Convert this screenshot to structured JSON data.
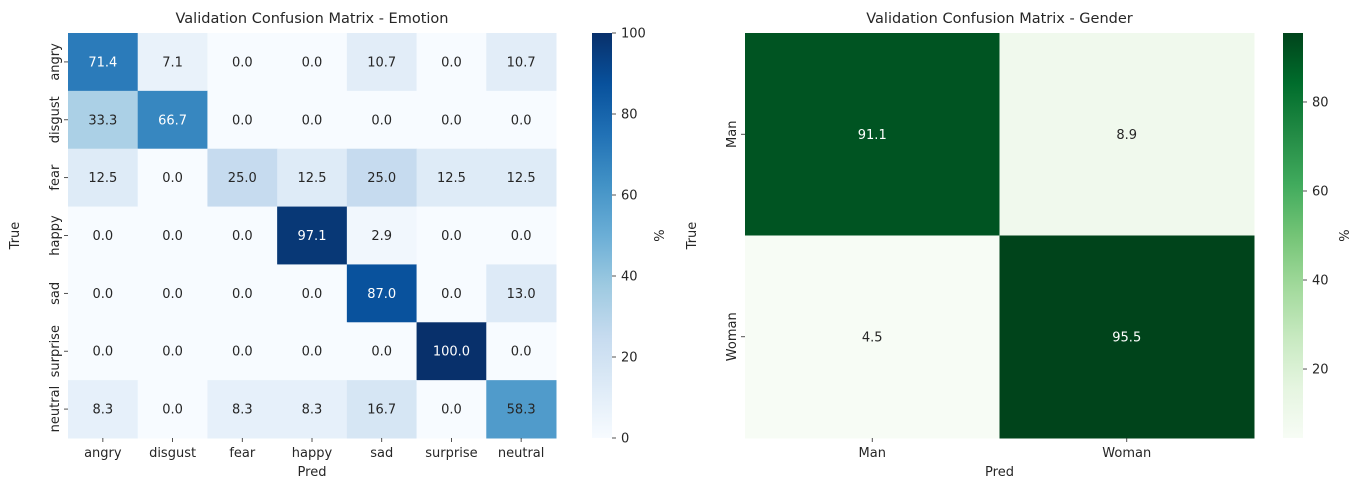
{
  "chart_data": [
    {
      "type": "heatmap",
      "title": "Validation Confusion Matrix - Emotion",
      "xlabel": "Pred",
      "ylabel": "True",
      "x_categories": [
        "angry",
        "disgust",
        "fear",
        "happy",
        "sad",
        "surprise",
        "neutral"
      ],
      "y_categories": [
        "angry",
        "disgust",
        "fear",
        "happy",
        "sad",
        "surprise",
        "neutral"
      ],
      "values": [
        [
          71.4,
          7.1,
          0.0,
          0.0,
          10.7,
          0.0,
          10.7
        ],
        [
          33.3,
          66.7,
          0.0,
          0.0,
          0.0,
          0.0,
          0.0
        ],
        [
          12.5,
          0.0,
          25.0,
          12.5,
          25.0,
          12.5,
          12.5
        ],
        [
          0.0,
          0.0,
          0.0,
          97.1,
          2.9,
          0.0,
          0.0
        ],
        [
          0.0,
          0.0,
          0.0,
          0.0,
          87.0,
          0.0,
          13.0
        ],
        [
          0.0,
          0.0,
          0.0,
          0.0,
          0.0,
          100.0,
          0.0
        ],
        [
          8.3,
          0.0,
          8.3,
          8.3,
          16.7,
          0.0,
          58.3
        ]
      ],
      "colormap": "Blues",
      "colorbar": {
        "label": "%",
        "range": [
          0,
          100
        ],
        "ticks": [
          0,
          20,
          40,
          60,
          80,
          100
        ]
      }
    },
    {
      "type": "heatmap",
      "title": "Validation Confusion Matrix - Gender",
      "xlabel": "Pred",
      "ylabel": "True",
      "x_categories": [
        "Man",
        "Woman"
      ],
      "y_categories": [
        "Man",
        "Woman"
      ],
      "values": [
        [
          91.1,
          8.9
        ],
        [
          4.5,
          95.5
        ]
      ],
      "colormap": "Greens",
      "colorbar": {
        "label": "%",
        "range": [
          4.5,
          95.5
        ],
        "ticks": [
          20,
          40,
          60,
          80
        ]
      }
    }
  ],
  "colormaps": {
    "Blues": [
      "#f7fbff",
      "#deebf7",
      "#c6dbef",
      "#9ecae1",
      "#6baed6",
      "#4292c6",
      "#2171b5",
      "#08519c",
      "#08306b"
    ],
    "Greens": [
      "#f7fcf5",
      "#e5f5e0",
      "#c7e9c0",
      "#a1d99b",
      "#74c476",
      "#41ab5d",
      "#238b45",
      "#006d2c",
      "#00441b"
    ]
  }
}
